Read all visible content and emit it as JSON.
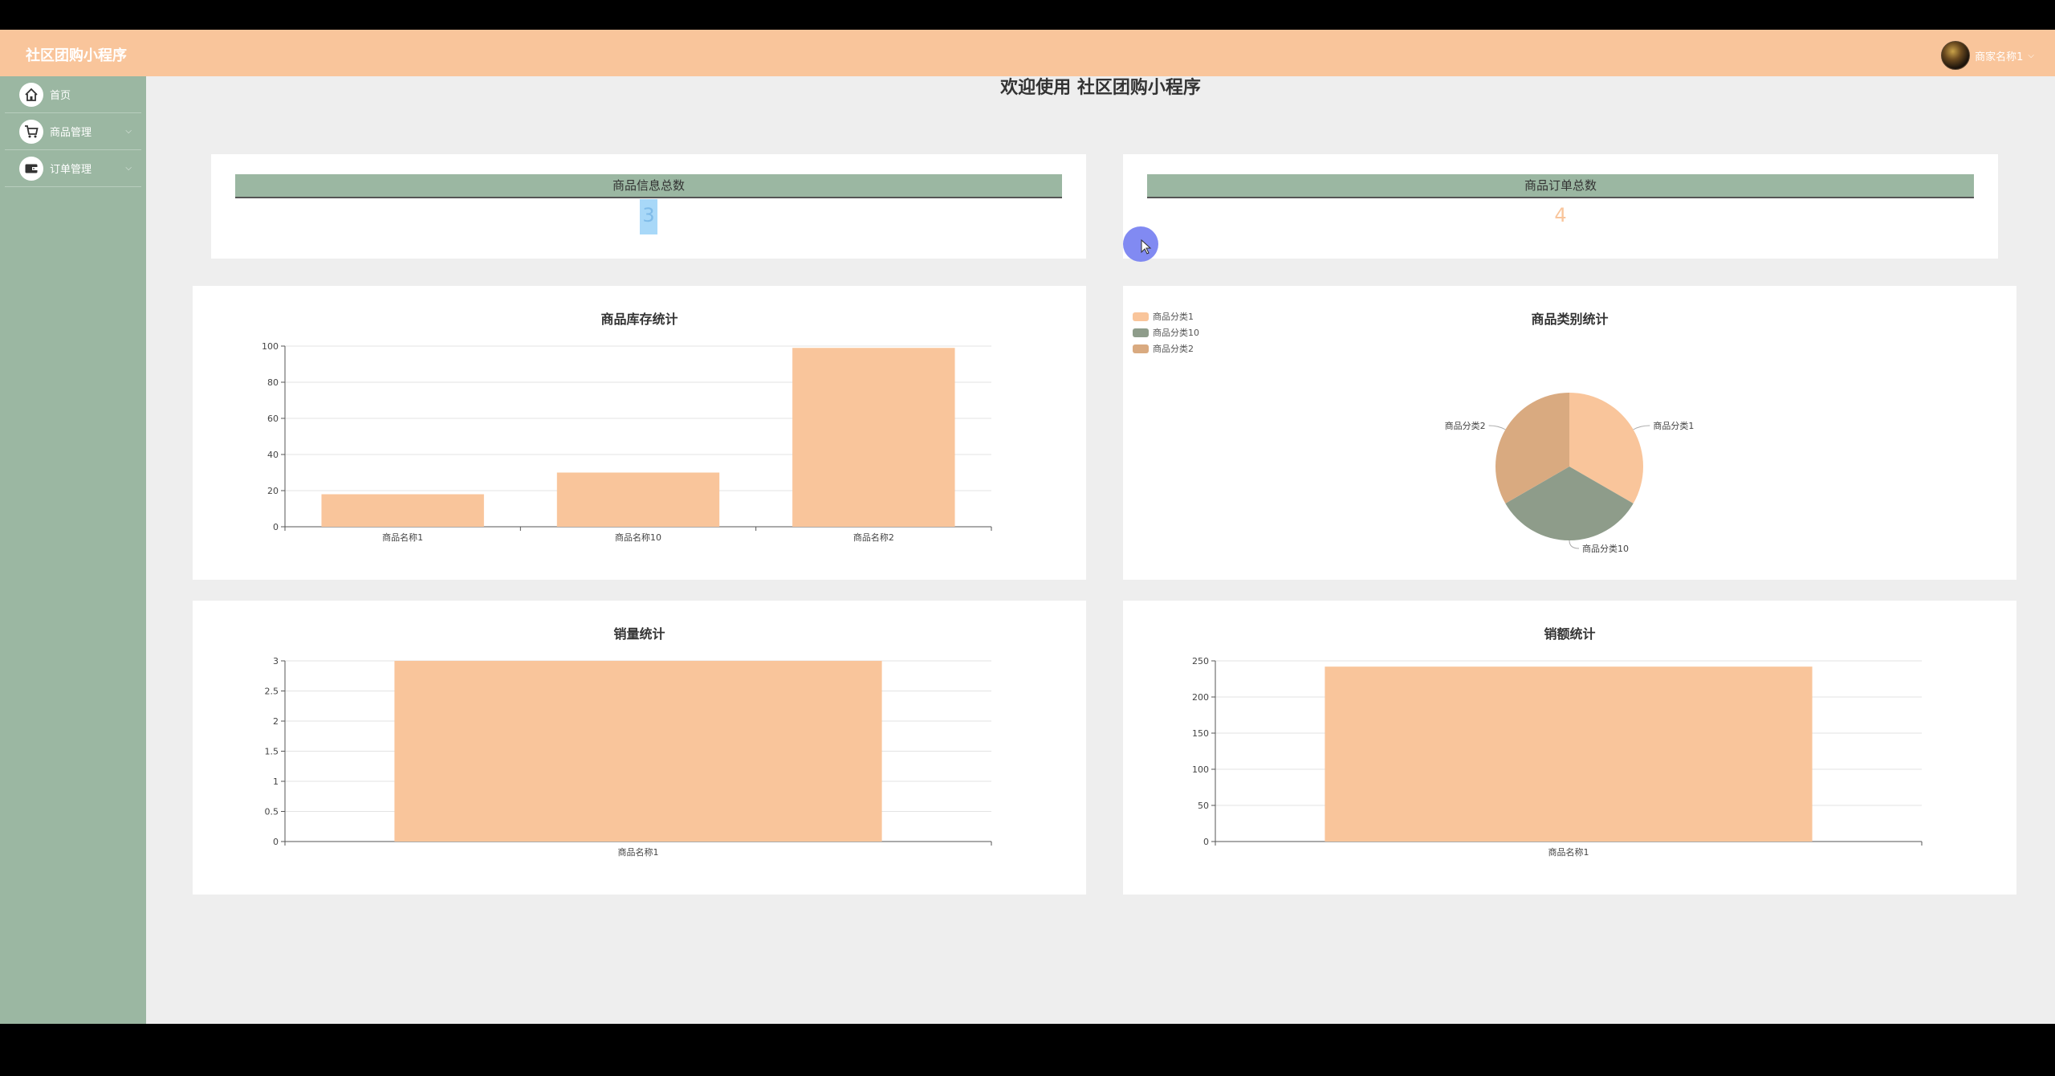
{
  "header": {
    "title": "社区团购小程序",
    "user_name": "商家名称1"
  },
  "sidebar": {
    "items": [
      {
        "label": "首页",
        "icon": "home-icon"
      },
      {
        "label": "商品管理",
        "icon": "cart-icon"
      },
      {
        "label": "订单管理",
        "icon": "wallet-icon"
      }
    ]
  },
  "main": {
    "welcome": "欢迎使用 社区团购小程序"
  },
  "stats": [
    {
      "label": "商品信息总数",
      "value": "3"
    },
    {
      "label": "商品订单总数",
      "value": "4"
    }
  ],
  "colors": {
    "accent": "#f9c59b",
    "sidebar": "#9bb7a2",
    "pie2": "#8e9c8a",
    "pie3": "#d9aa80",
    "cursor": "#7b84f2"
  },
  "charts": {
    "stock": {
      "title": "商品库存统计"
    },
    "category": {
      "title": "商品类别统计"
    },
    "sales_qty": {
      "title": "销量统计"
    },
    "sales_amt": {
      "title": "销额统计"
    }
  },
  "chart_data": [
    {
      "type": "bar",
      "title": "商品库存统计",
      "categories": [
        "商品名称1",
        "商品名称10",
        "商品名称2"
      ],
      "values": [
        18,
        30,
        99
      ],
      "ylim": [
        0,
        100
      ],
      "yticks": [
        "0",
        "20",
        "40",
        "60",
        "80",
        "100"
      ],
      "grid": true
    },
    {
      "type": "pie",
      "title": "商品类别统计",
      "labels": [
        "商品分类1",
        "商品分类10",
        "商品分类2"
      ],
      "values": [
        1,
        1,
        1
      ],
      "legend": "top-left"
    },
    {
      "type": "bar",
      "title": "销量统计",
      "categories": [
        "商品名称1"
      ],
      "values": [
        3
      ],
      "ylim": [
        0,
        3
      ],
      "yticks": [
        "0",
        "0.5",
        "1",
        "1.5",
        "2",
        "2.5",
        "3"
      ],
      "grid": true
    },
    {
      "type": "bar",
      "title": "销额统计",
      "categories": [
        "商品名称1"
      ],
      "values": [
        242
      ],
      "ylim": [
        0,
        250
      ],
      "yticks": [
        "0",
        "50",
        "100",
        "150",
        "200",
        "250"
      ],
      "grid": true
    }
  ]
}
